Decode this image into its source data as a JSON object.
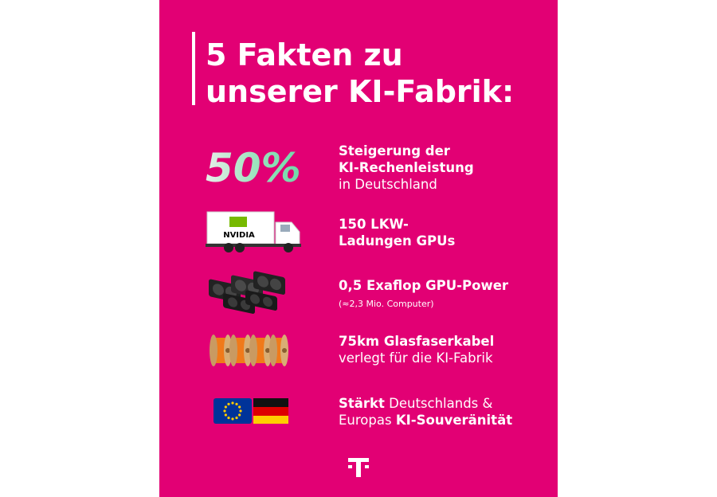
{
  "title": {
    "lines": [
      "5 Fakten zu",
      "unserer KI-Fabrik:"
    ]
  },
  "facts": [
    {
      "highlight": "50%",
      "lines": [
        [
          {
            "text": "Steigerung der",
            "bold": true
          }
        ],
        [
          {
            "text": "KI-Rechenleistung",
            "bold": true
          }
        ],
        [
          {
            "text": "in Deutschland",
            "bold": false
          }
        ]
      ]
    },
    {
      "icon_text": "NVIDIA",
      "lines": [
        [
          {
            "text": "150 LKW-",
            "bold": true
          }
        ],
        [
          {
            "text": "Ladungen GPUs",
            "bold": true
          }
        ]
      ]
    },
    {
      "lines": [
        [
          {
            "text": "0,5 Exaflop GPU-Power",
            "bold": true
          }
        ]
      ],
      "note": "(≈2,3 Mio. Computer)"
    },
    {
      "lines": [
        [
          {
            "text": "75km Glasfaserkabel",
            "bold": true
          }
        ],
        [
          {
            "text": "verlegt für die KI-Fabrik",
            "bold": false
          }
        ]
      ]
    },
    {
      "lines": [
        [
          {
            "text": "Stärkt",
            "bold": true
          },
          {
            "text": " Deutschlands &",
            "bold": false
          }
        ],
        [
          {
            "text": "Europas ",
            "bold": false
          },
          {
            "text": "KI-Souveränität",
            "bold": true
          }
        ]
      ]
    }
  ]
}
